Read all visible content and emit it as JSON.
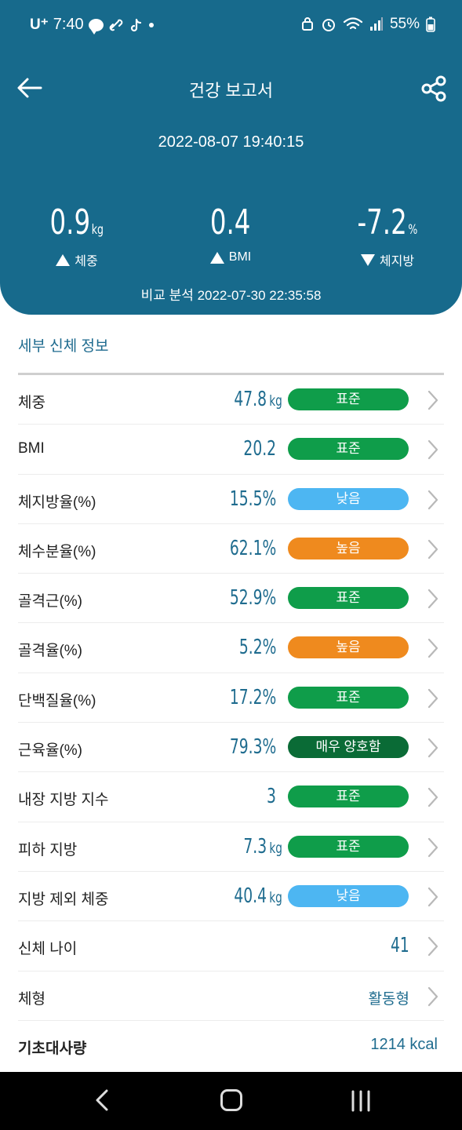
{
  "status_bar": {
    "carrier": "U⁺",
    "time": "7:40",
    "battery": "55%"
  },
  "header": {
    "title": "건강 보고서",
    "datetime": "2022-08-07 19:40:15"
  },
  "metrics": [
    {
      "value": "0.9",
      "unit": "kg",
      "label": "체중",
      "direction": "up"
    },
    {
      "value": "0.4",
      "unit": "",
      "label": "BMI",
      "direction": "up"
    },
    {
      "value": "-7.2",
      "unit": "%",
      "label": "체지방",
      "direction": "down"
    }
  ],
  "compare": "비교 분석 2022-07-30 22:35:58",
  "section": {
    "title": "세부 신체 정보"
  },
  "rows": [
    {
      "name": "체중",
      "value": "47.8",
      "unit": "kg",
      "badge": "표준",
      "badge_color": "#0f9d4a"
    },
    {
      "name": "BMI",
      "value": "20.2",
      "unit": "",
      "badge": "표준",
      "badge_color": "#0f9d4a"
    },
    {
      "name": "체지방율(%)",
      "value": "15.5%",
      "unit": "",
      "badge": "낮음",
      "badge_color": "#4db6f2"
    },
    {
      "name": "체수분율(%)",
      "value": "62.1%",
      "unit": "",
      "badge": "높음",
      "badge_color": "#ef8a1e"
    },
    {
      "name": "골격근(%)",
      "value": "52.9%",
      "unit": "",
      "badge": "표준",
      "badge_color": "#0f9d4a"
    },
    {
      "name": "골격율(%)",
      "value": "5.2%",
      "unit": "",
      "badge": "높음",
      "badge_color": "#ef8a1e"
    },
    {
      "name": "단백질율(%)",
      "value": "17.2%",
      "unit": "",
      "badge": "표준",
      "badge_color": "#0f9d4a"
    },
    {
      "name": "근육율(%)",
      "value": "79.3%",
      "unit": "",
      "badge": "매우 양호함",
      "badge_color": "#0a6b36"
    },
    {
      "name": "내장 지방 지수",
      "value": "3",
      "unit": "",
      "badge": "표준",
      "badge_color": "#0f9d4a"
    },
    {
      "name": "피하 지방",
      "value": "7.3",
      "unit": "kg",
      "badge": "표준",
      "badge_color": "#0f9d4a"
    },
    {
      "name": "지방 제외 체중",
      "value": "40.4",
      "unit": "kg",
      "badge": "낮음",
      "badge_color": "#4db6f2"
    }
  ],
  "plain_rows": [
    {
      "name": "신체 나이",
      "value": "41"
    },
    {
      "name": "체형",
      "value": "활동형"
    }
  ],
  "bmr": {
    "name": "기초대사량",
    "value": "1214 kcal"
  },
  "colors": {
    "header_bg": "#176a8c",
    "value_text": "#1f6c8f"
  },
  "icons": {
    "back": "back-arrow-icon",
    "share": "share-icon",
    "chevron": "chevron-right-icon"
  }
}
